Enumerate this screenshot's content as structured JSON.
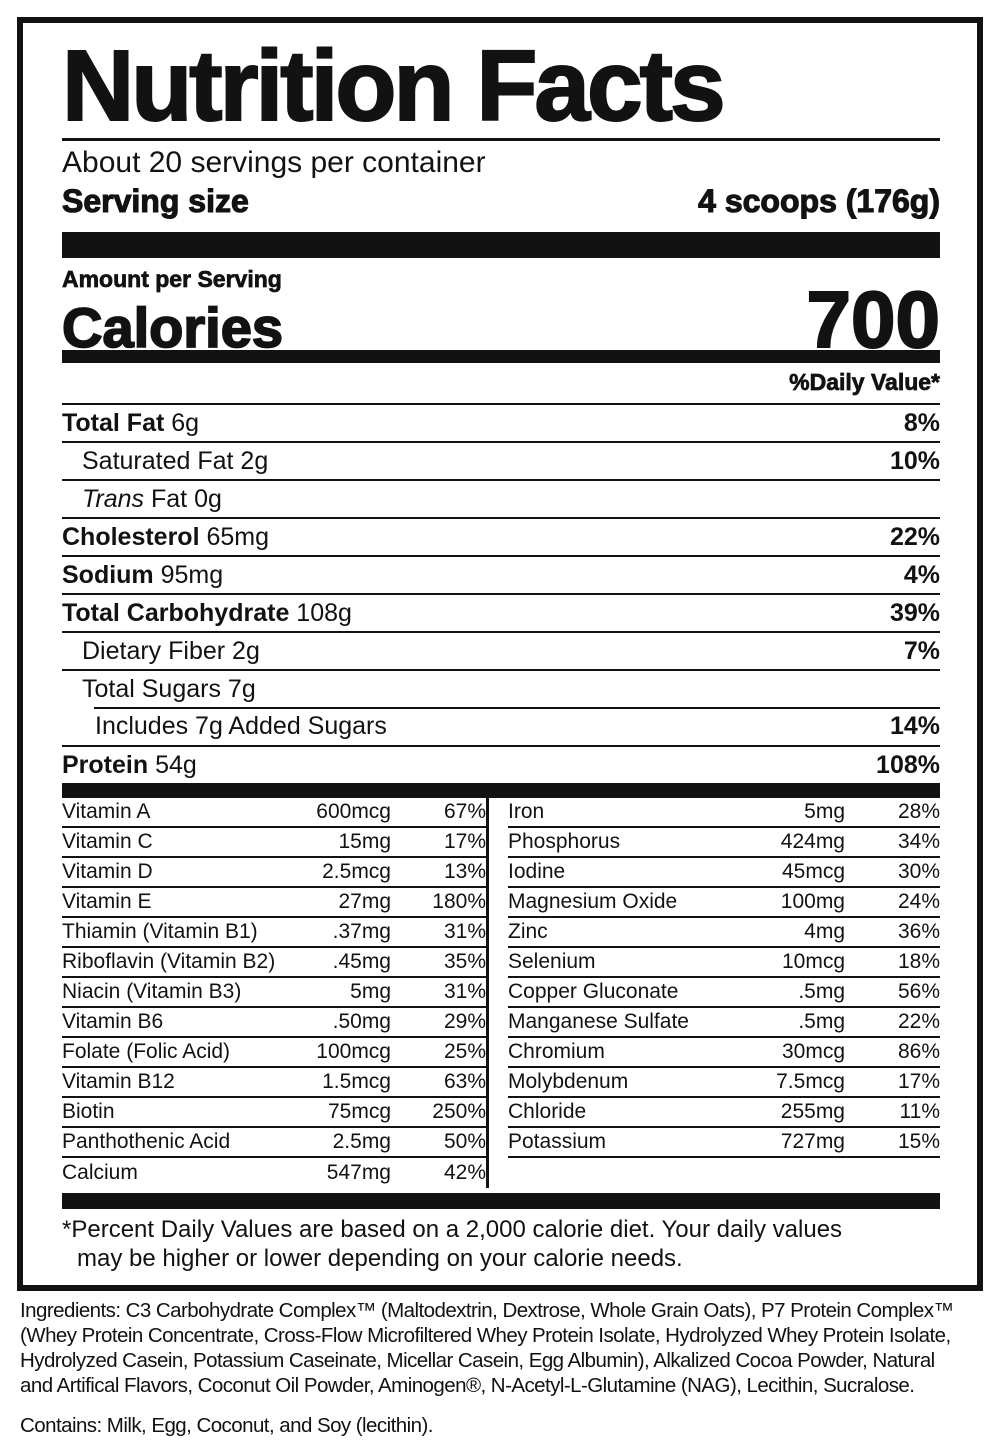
{
  "colors": {
    "ink": "#121212",
    "paper": "#ffffff"
  },
  "label": {
    "title": "Nutrition Facts",
    "servings_line": "About 20 servings per container",
    "serving_size": {
      "label": "Serving size",
      "value": "4 scoops (176g)"
    },
    "amount_per_serving": "Amount per Serving",
    "calories": {
      "label": "Calories",
      "value": "700"
    },
    "daily_value_header": "%Daily Value*",
    "nutrient_rows": [
      {
        "bold": "Total Fat",
        "rest": " 6g",
        "dv": "8%",
        "indent": 0
      },
      {
        "rest": "Saturated Fat 2g",
        "dv": "10%",
        "indent": 1
      },
      {
        "italic": "Trans",
        "rest": " Fat 0g",
        "dv": "",
        "indent": 1
      },
      {
        "bold": "Cholesterol",
        "rest": " 65mg",
        "dv": "22%",
        "indent": 0
      },
      {
        "bold": "Sodium",
        "rest": " 95mg",
        "dv": "4%",
        "indent": 0
      },
      {
        "bold": "Total Carbohydrate",
        "rest": " 108g",
        "dv": "39%",
        "indent": 0
      },
      {
        "rest": "Dietary Fiber 2g",
        "dv": "7%",
        "indent": 1
      },
      {
        "rest": "Total Sugars 7g",
        "dv": "",
        "indent": 1
      },
      {
        "rest": "Includes 7g Added Sugars",
        "dv": "14%",
        "indent": 2,
        "inset_divider": true
      },
      {
        "bold": "Protein",
        "rest": " 54g",
        "dv": "108%",
        "indent": 0
      }
    ],
    "micronutrients": {
      "left": [
        {
          "name": "Vitamin A",
          "amount": "600mcg",
          "dv": "67%"
        },
        {
          "name": "Vitamin C",
          "amount": "15mg",
          "dv": "17%"
        },
        {
          "name": "Vitamin D",
          "amount": "2.5mcg",
          "dv": "13%"
        },
        {
          "name": "Vitamin E",
          "amount": "27mg",
          "dv": "180%"
        },
        {
          "name": "Thiamin (Vitamin B1)",
          "amount": ".37mg",
          "dv": "31%"
        },
        {
          "name": "Riboflavin (Vitamin B2)",
          "amount": ".45mg",
          "dv": "35%"
        },
        {
          "name": "Niacin (Vitamin B3)",
          "amount": "5mg",
          "dv": "31%"
        },
        {
          "name": "Vitamin B6",
          "amount": ".50mg",
          "dv": "29%"
        },
        {
          "name": "Folate (Folic Acid)",
          "amount": "100mcg",
          "dv": "25%"
        },
        {
          "name": "Vitamin B12",
          "amount": "1.5mcg",
          "dv": "63%"
        },
        {
          "name": "Biotin",
          "amount": "75mcg",
          "dv": "250%"
        },
        {
          "name": "Panthothenic Acid",
          "amount": "2.5mg",
          "dv": "50%"
        },
        {
          "name": "Calcium",
          "amount": "547mg",
          "dv": "42%"
        }
      ],
      "right": [
        {
          "name": "Iron",
          "amount": "5mg",
          "dv": "28%"
        },
        {
          "name": "Phosphorus",
          "amount": "424mg",
          "dv": "34%"
        },
        {
          "name": "Iodine",
          "amount": "45mcg",
          "dv": "30%"
        },
        {
          "name": "Magnesium Oxide",
          "amount": "100mg",
          "dv": "24%"
        },
        {
          "name": "Zinc",
          "amount": "4mg",
          "dv": "36%"
        },
        {
          "name": "Selenium",
          "amount": "10mcg",
          "dv": "18%"
        },
        {
          "name": "Copper Gluconate",
          "amount": ".5mg",
          "dv": "56%"
        },
        {
          "name": "Manganese Sulfate",
          "amount": ".5mg",
          "dv": "22%"
        },
        {
          "name": "Chromium",
          "amount": "30mcg",
          "dv": "86%"
        },
        {
          "name": "Molybdenum",
          "amount": "7.5mcg",
          "dv": "17%"
        },
        {
          "name": "Chloride",
          "amount": "255mg",
          "dv": "11%"
        },
        {
          "name": "Potassium",
          "amount": "727mg",
          "dv": "15%"
        }
      ]
    },
    "footnote": {
      "line1": "*Percent Daily Values are based on a 2,000 calorie diet. Your daily values",
      "line2": "may be higher or lower depending on your calorie needs."
    }
  },
  "ingredients": {
    "label": "Ingredients:",
    "line1": " C3 Carbohydrate Complex™ (Maltodextrin, Dextrose, Whole Grain Oats), P7 Protein Complex™",
    "line2": "(Whey Protein Concentrate, Cross-Flow Microfiltered Whey Protein Isolate, Hydrolyzed Whey Protein Isolate,",
    "line3": "Hydrolyzed Casein, Potassium Caseinate, Micellar Casein, Egg Albumin), Alkalized Cocoa Powder, Natural",
    "line4": "and Artifical Flavors, Coconut Oil Powder, Aminogen®, N-Acetyl-L-Glutamine (NAG), Lecithin, Sucralose."
  },
  "contains": {
    "label": "Contains:",
    "text": " Milk, Egg, Coconut, and Soy (lecithin)."
  }
}
